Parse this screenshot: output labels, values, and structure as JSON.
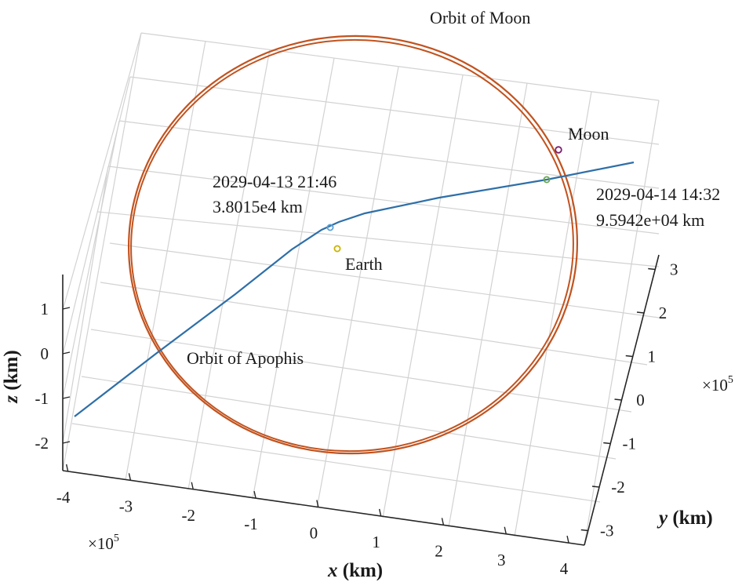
{
  "chart_data": {
    "type": "line3d",
    "title": "",
    "xlabel_var": "x",
    "xlabel_unit": " (km)",
    "ylabel_var": "y",
    "ylabel_unit": " (km)",
    "zlabel_var": "z",
    "zlabel_unit": " (km)",
    "x_ticks": [
      "-4",
      "-3",
      "-2",
      "-1",
      "0",
      "1",
      "2",
      "3",
      "4"
    ],
    "y_ticks": [
      "-3",
      "-2",
      "-1",
      "0",
      "1",
      "2",
      "3"
    ],
    "z_ticks": [
      "-2",
      "-1",
      "0",
      "1"
    ],
    "x_exponent": {
      "base": "×10",
      "power": "5"
    },
    "y_exponent": {
      "base": "×10",
      "power": "5"
    },
    "xlim": [
      -400000,
      400000
    ],
    "ylim": [
      -300000,
      300000
    ],
    "zlim": [
      -2,
      1.5
    ],
    "grid": true,
    "series": [
      {
        "name": "Orbit of Moon",
        "color": "#c1531f"
      },
      {
        "name": "Orbit of Apophis",
        "color": "#2e6fa8"
      }
    ],
    "annotations": {
      "orbit_moon_label": "Orbit of Moon",
      "orbit_apophis_label": "Orbit of Apophis",
      "moon_label": "Moon",
      "earth_label": "Earth",
      "closest_approach": {
        "line1": "2029-04-13 21:46",
        "line2": "3.8015e4 km"
      },
      "moon_approach": {
        "line1": "2029-04-14 14:32",
        "line2": "9.5942e+04 km"
      }
    },
    "markers": [
      {
        "name": "Earth",
        "color": "#c9b400"
      },
      {
        "name": "Moon",
        "color": "#7a1f6e"
      },
      {
        "name": "closest-approach-point",
        "color": "#5aa0d6"
      },
      {
        "name": "moon-approach-point",
        "color": "#6aa84f"
      }
    ]
  }
}
